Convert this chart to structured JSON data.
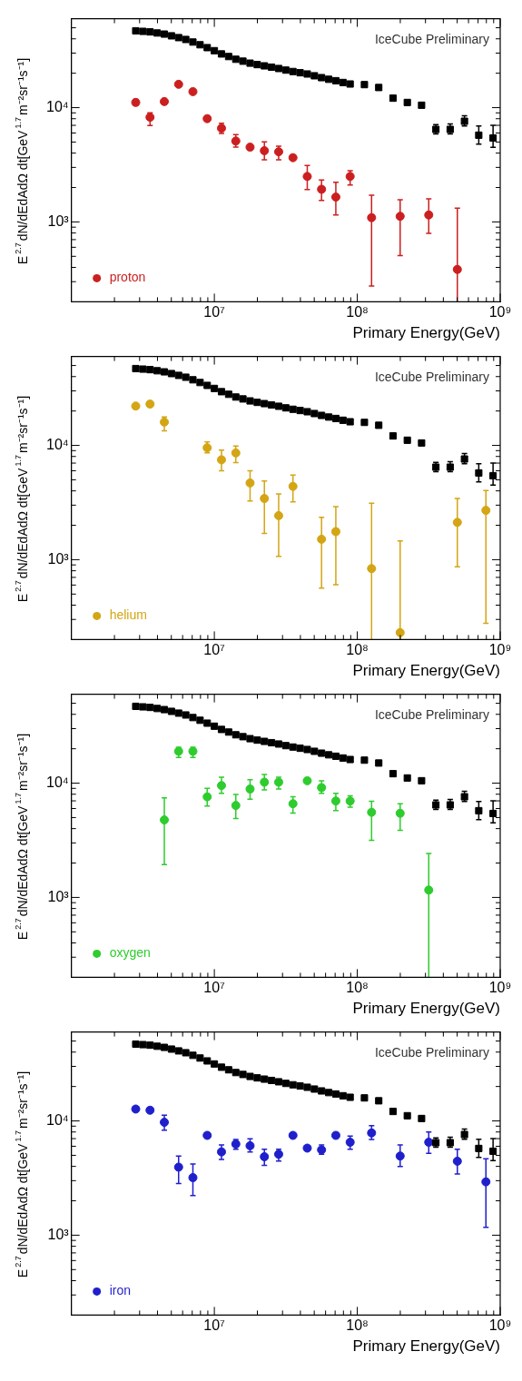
{
  "chart_data": [
    {
      "type": "scatter",
      "xlabel": "Primary Energy(GeV)",
      "ylabel": "E$^{2.7}$dN/dEdAdΩ dt[GeV$^{1.7}$m⁻²sr⁻¹s⁻¹]",
      "annotations": [
        "IceCube Preliminary"
      ],
      "log": "xy",
      "grid": false,
      "legend": "bottom left",
      "xlim": [
        1000000,
        1000000000
      ],
      "ylim": [
        200,
        60000
      ],
      "xticks": [
        {
          "value": 2000000,
          "label": null
        },
        {
          "value": 3000000,
          "label": null
        },
        {
          "value": 4000000,
          "label": null
        },
        {
          "value": 5000000,
          "label": null
        },
        {
          "value": 6000000,
          "label": null
        },
        {
          "value": 7000000,
          "label": null
        },
        {
          "value": 8000000,
          "label": null
        },
        {
          "value": 9000000,
          "label": null
        },
        {
          "value": 10000000,
          "label": "10⁷"
        },
        {
          "value": 20000000,
          "label": null
        },
        {
          "value": 30000000,
          "label": null
        },
        {
          "value": 40000000,
          "label": null
        },
        {
          "value": 50000000,
          "label": null
        },
        {
          "value": 60000000,
          "label": null
        },
        {
          "value": 70000000,
          "label": null
        },
        {
          "value": 80000000,
          "label": null
        },
        {
          "value": 90000000,
          "label": null
        },
        {
          "value": 100000000,
          "label": "10⁸"
        },
        {
          "value": 200000000,
          "label": null
        },
        {
          "value": 300000000,
          "label": null
        },
        {
          "value": 400000000,
          "label": null
        },
        {
          "value": 500000000,
          "label": null
        },
        {
          "value": 600000000,
          "label": null
        },
        {
          "value": 700000000,
          "label": null
        },
        {
          "value": 800000000,
          "label": null
        },
        {
          "value": 900000000,
          "label": null
        },
        {
          "value": 1000000000,
          "label": "10⁹"
        }
      ],
      "yticks": [
        {
          "value": 300,
          "label": null
        },
        {
          "value": 400,
          "label": null
        },
        {
          "value": 500,
          "label": null
        },
        {
          "value": 600,
          "label": null
        },
        {
          "value": 700,
          "label": null
        },
        {
          "value": 800,
          "label": null
        },
        {
          "value": 900,
          "label": null
        },
        {
          "value": 1000,
          "label": "10³"
        },
        {
          "value": 2000,
          "label": null
        },
        {
          "value": 3000,
          "label": null
        },
        {
          "value": 4000,
          "label": null
        },
        {
          "value": 5000,
          "label": null
        },
        {
          "value": 6000,
          "label": null
        },
        {
          "value": 7000,
          "label": null
        },
        {
          "value": 8000,
          "label": null
        },
        {
          "value": 9000,
          "label": null
        },
        {
          "value": 10000,
          "label": "10⁴"
        },
        {
          "value": 20000,
          "label": null
        },
        {
          "value": 30000,
          "label": null
        },
        {
          "value": 40000,
          "label": null
        },
        {
          "value": 50000,
          "label": null
        }
      ],
      "series": [
        {
          "color": "#000000",
          "marker": "square",
          "x": [
            2818000.0,
            3162000.0,
            3548000.0,
            3981000.0,
            4467000.0,
            5012000.0,
            5623000.0,
            6310000.0,
            7079000.0,
            7943000.0,
            8913000.0,
            10000000.0,
            11220000.0,
            12590000.0,
            14130000.0,
            15850000.0,
            17780000.0,
            19950000.0,
            22390000.0,
            25120000.0,
            28180000.0,
            31620000.0,
            35480000.0,
            39810000.0,
            44670000.0,
            50120000.0,
            56230000.0,
            63100000.0,
            70790000.0,
            79430000.0,
            89130000.0,
            112200000.0,
            141300000.0,
            177800000.0,
            223900000.0,
            281800000.0,
            354800000.0,
            446700000.0,
            562300000.0,
            707900000.0,
            891300000.0
          ],
          "values": [
            47000,
            46500,
            46000,
            45000,
            44000,
            42500,
            41000,
            39500,
            37500,
            35500,
            33500,
            31500,
            29500,
            28000,
            26500,
            25500,
            24500,
            23800,
            23200,
            22600,
            22000,
            21300,
            20700,
            20200,
            19700,
            19000,
            18300,
            17700,
            17200,
            16600,
            16100,
            15900,
            15000,
            12100,
            11100,
            10500,
            6450,
            6450,
            7600,
            5740,
            5430
          ],
          "errors": [
            null,
            null,
            null,
            null,
            null,
            null,
            null,
            null,
            null,
            null,
            null,
            null,
            null,
            null,
            null,
            null,
            null,
            null,
            null,
            null,
            null,
            null,
            null,
            null,
            null,
            null,
            null,
            null,
            null,
            null,
            null,
            null,
            null,
            null,
            null,
            null,
            [
              5900,
              7100
            ],
            [
              5900,
              7200
            ],
            [
              6900,
              8500
            ],
            [
              4800,
              6900
            ],
            [
              4500,
              7000
            ]
          ]
        },
        {
          "name": "proton",
          "color": "#cc1f1f",
          "marker": "circle",
          "x": [
            2818000.0,
            3548000.0,
            4467000.0,
            5623000.0,
            7079000.0,
            8913000.0,
            11220000.0,
            14130000.0,
            17780000.0,
            22390000.0,
            28180000.0,
            35480000.0,
            44670000.0,
            56230000.0,
            70790000.0,
            89130000.0,
            125900000.0,
            199500000.0,
            316200000.0,
            501200000.0
          ],
          "values": [
            11100,
            8240,
            11300,
            16000,
            13800,
            8010,
            6600,
            5100,
            4510,
            4200,
            4110,
            3650,
            2500,
            1930,
            1650,
            2500,
            1090,
            1120,
            1150,
            384
          ],
          "errors": [
            [
              10500,
              11800
            ],
            [
              6960,
              9020
            ],
            null,
            null,
            null,
            null,
            [
              5940,
              7310
            ],
            [
              4510,
              5820
            ],
            null,
            [
              3490,
              5010
            ],
            [
              3490,
              4600
            ],
            null,
            [
              1920,
              3120
            ],
            [
              1540,
              2330
            ],
            [
              1150,
              2220
            ],
            [
              2100,
              2810
            ],
            [
              275,
              1710
            ],
            [
              507,
              1560
            ],
            [
              795,
              1590
            ],
            [
              200,
              1320
            ]
          ]
        }
      ]
    },
    {
      "type": "scatter",
      "xlabel": "Primary Energy(GeV)",
      "ylabel": "E$^{2.7}$dN/dEdAdΩ dt[GeV$^{1.7}$m⁻²sr⁻¹s⁻¹]",
      "annotations": [
        "IceCube Preliminary"
      ],
      "log": "xy",
      "grid": false,
      "legend": "bottom left",
      "xlim": [
        1000000,
        1000000000
      ],
      "ylim": [
        200,
        60000
      ],
      "xticks": [
        {
          "value": 2000000,
          "label": null
        },
        {
          "value": 3000000,
          "label": null
        },
        {
          "value": 4000000,
          "label": null
        },
        {
          "value": 5000000,
          "label": null
        },
        {
          "value": 6000000,
          "label": null
        },
        {
          "value": 7000000,
          "label": null
        },
        {
          "value": 8000000,
          "label": null
        },
        {
          "value": 9000000,
          "label": null
        },
        {
          "value": 10000000,
          "label": "10⁷"
        },
        {
          "value": 20000000,
          "label": null
        },
        {
          "value": 30000000,
          "label": null
        },
        {
          "value": 40000000,
          "label": null
        },
        {
          "value": 50000000,
          "label": null
        },
        {
          "value": 60000000,
          "label": null
        },
        {
          "value": 70000000,
          "label": null
        },
        {
          "value": 80000000,
          "label": null
        },
        {
          "value": 90000000,
          "label": null
        },
        {
          "value": 100000000,
          "label": "10⁸"
        },
        {
          "value": 200000000,
          "label": null
        },
        {
          "value": 300000000,
          "label": null
        },
        {
          "value": 400000000,
          "label": null
        },
        {
          "value": 500000000,
          "label": null
        },
        {
          "value": 600000000,
          "label": null
        },
        {
          "value": 700000000,
          "label": null
        },
        {
          "value": 800000000,
          "label": null
        },
        {
          "value": 900000000,
          "label": null
        },
        {
          "value": 1000000000,
          "label": "10⁹"
        }
      ],
      "yticks": [
        {
          "value": 300,
          "label": null
        },
        {
          "value": 400,
          "label": null
        },
        {
          "value": 500,
          "label": null
        },
        {
          "value": 600,
          "label": null
        },
        {
          "value": 700,
          "label": null
        },
        {
          "value": 800,
          "label": null
        },
        {
          "value": 900,
          "label": null
        },
        {
          "value": 1000,
          "label": "10³"
        },
        {
          "value": 2000,
          "label": null
        },
        {
          "value": 3000,
          "label": null
        },
        {
          "value": 4000,
          "label": null
        },
        {
          "value": 5000,
          "label": null
        },
        {
          "value": 6000,
          "label": null
        },
        {
          "value": 7000,
          "label": null
        },
        {
          "value": 8000,
          "label": null
        },
        {
          "value": 9000,
          "label": null
        },
        {
          "value": 10000,
          "label": "10⁴"
        },
        {
          "value": 20000,
          "label": null
        },
        {
          "value": 30000,
          "label": null
        },
        {
          "value": 40000,
          "label": null
        },
        {
          "value": 50000,
          "label": null
        }
      ],
      "series": [
        {
          "color": "#000000",
          "marker": "square",
          "x": [
            2818000.0,
            3162000.0,
            3548000.0,
            3981000.0,
            4467000.0,
            5012000.0,
            5623000.0,
            6310000.0,
            7079000.0,
            7943000.0,
            8913000.0,
            10000000.0,
            11220000.0,
            12590000.0,
            14130000.0,
            15850000.0,
            17780000.0,
            19950000.0,
            22390000.0,
            25120000.0,
            28180000.0,
            31620000.0,
            35480000.0,
            39810000.0,
            44670000.0,
            50120000.0,
            56230000.0,
            63100000.0,
            70790000.0,
            79430000.0,
            89130000.0,
            112200000.0,
            141300000.0,
            177800000.0,
            223900000.0,
            281800000.0,
            354800000.0,
            446700000.0,
            562300000.0,
            707900000.0,
            891300000.0
          ],
          "values": [
            47000,
            46500,
            46000,
            45000,
            44000,
            42500,
            41000,
            39500,
            37500,
            35500,
            33500,
            31500,
            29500,
            28000,
            26500,
            25500,
            24500,
            23800,
            23200,
            22600,
            22000,
            21300,
            20700,
            20200,
            19700,
            19000,
            18300,
            17700,
            17200,
            16600,
            16100,
            15900,
            15000,
            12100,
            11100,
            10500,
            6450,
            6450,
            7600,
            5740,
            5430
          ],
          "errors": [
            null,
            null,
            null,
            null,
            null,
            null,
            null,
            null,
            null,
            null,
            null,
            null,
            null,
            null,
            null,
            null,
            null,
            null,
            null,
            null,
            null,
            null,
            null,
            null,
            null,
            null,
            null,
            null,
            null,
            null,
            null,
            null,
            null,
            null,
            null,
            null,
            [
              5900,
              7100
            ],
            [
              5900,
              7200
            ],
            [
              6900,
              8500
            ],
            [
              4800,
              6900
            ],
            [
              4500,
              7000
            ]
          ]
        },
        {
          "name": "helium",
          "color": "#d4a514",
          "marker": "circle",
          "x": [
            2818000.0,
            3548000.0,
            4467000.0,
            8913000.0,
            11220000.0,
            14130000.0,
            17780000.0,
            22390000.0,
            28180000.0,
            35480000.0,
            56230000.0,
            70790000.0,
            125900000.0,
            199500000.0,
            501200000.0,
            794300000.0
          ],
          "values": [
            22100,
            23000,
            16000,
            9530,
            7480,
            8590,
            4690,
            3430,
            2430,
            4380,
            1510,
            1760,
            836,
            230,
            2120,
            2700
          ],
          "errors": [
            null,
            null,
            [
              13400,
              17700
            ],
            [
              8600,
              10700
            ],
            [
              6000,
              9080
            ],
            [
              7080,
              9860
            ],
            [
              3270,
              6000
            ],
            [
              1700,
              4890
            ],
            [
              1070,
              3760
            ],
            [
              3210,
              5490
            ],
            [
              564,
              2350
            ],
            [
              604,
              2910
            ],
            [
              200,
              3120
            ],
            [
              200,
              1460
            ],
            [
              865,
              3430
            ],
            [
              277,
              4030
            ]
          ]
        }
      ]
    },
    {
      "type": "scatter",
      "xlabel": "Primary Energy(GeV)",
      "ylabel": "E$^{2.7}$dN/dEdAdΩ dt[GeV$^{1.7}$m⁻²sr⁻¹s⁻¹]",
      "annotations": [
        "IceCube Preliminary"
      ],
      "log": "xy",
      "grid": false,
      "legend": "bottom left",
      "xlim": [
        1000000,
        1000000000
      ],
      "ylim": [
        200,
        60000
      ],
      "xticks": [
        {
          "value": 2000000,
          "label": null
        },
        {
          "value": 3000000,
          "label": null
        },
        {
          "value": 4000000,
          "label": null
        },
        {
          "value": 5000000,
          "label": null
        },
        {
          "value": 6000000,
          "label": null
        },
        {
          "value": 7000000,
          "label": null
        },
        {
          "value": 8000000,
          "label": null
        },
        {
          "value": 9000000,
          "label": null
        },
        {
          "value": 10000000,
          "label": "10⁷"
        },
        {
          "value": 20000000,
          "label": null
        },
        {
          "value": 30000000,
          "label": null
        },
        {
          "value": 40000000,
          "label": null
        },
        {
          "value": 50000000,
          "label": null
        },
        {
          "value": 60000000,
          "label": null
        },
        {
          "value": 70000000,
          "label": null
        },
        {
          "value": 80000000,
          "label": null
        },
        {
          "value": 90000000,
          "label": null
        },
        {
          "value": 100000000,
          "label": "10⁸"
        },
        {
          "value": 200000000,
          "label": null
        },
        {
          "value": 300000000,
          "label": null
        },
        {
          "value": 400000000,
          "label": null
        },
        {
          "value": 500000000,
          "label": null
        },
        {
          "value": 600000000,
          "label": null
        },
        {
          "value": 700000000,
          "label": null
        },
        {
          "value": 800000000,
          "label": null
        },
        {
          "value": 900000000,
          "label": null
        },
        {
          "value": 1000000000,
          "label": "10⁹"
        }
      ],
      "yticks": [
        {
          "value": 300,
          "label": null
        },
        {
          "value": 400,
          "label": null
        },
        {
          "value": 500,
          "label": null
        },
        {
          "value": 600,
          "label": null
        },
        {
          "value": 700,
          "label": null
        },
        {
          "value": 800,
          "label": null
        },
        {
          "value": 900,
          "label": null
        },
        {
          "value": 1000,
          "label": "10³"
        },
        {
          "value": 2000,
          "label": null
        },
        {
          "value": 3000,
          "label": null
        },
        {
          "value": 4000,
          "label": null
        },
        {
          "value": 5000,
          "label": null
        },
        {
          "value": 6000,
          "label": null
        },
        {
          "value": 7000,
          "label": null
        },
        {
          "value": 8000,
          "label": null
        },
        {
          "value": 9000,
          "label": null
        },
        {
          "value": 10000,
          "label": "10⁴"
        },
        {
          "value": 20000,
          "label": null
        },
        {
          "value": 30000,
          "label": null
        },
        {
          "value": 40000,
          "label": null
        },
        {
          "value": 50000,
          "label": null
        }
      ],
      "series": [
        {
          "color": "#000000",
          "marker": "square",
          "x": [
            2818000.0,
            3162000.0,
            3548000.0,
            3981000.0,
            4467000.0,
            5012000.0,
            5623000.0,
            6310000.0,
            7079000.0,
            7943000.0,
            8913000.0,
            10000000.0,
            11220000.0,
            12590000.0,
            14130000.0,
            15850000.0,
            17780000.0,
            19950000.0,
            22390000.0,
            25120000.0,
            28180000.0,
            31620000.0,
            35480000.0,
            39810000.0,
            44670000.0,
            50120000.0,
            56230000.0,
            63100000.0,
            70790000.0,
            79430000.0,
            89130000.0,
            112200000.0,
            141300000.0,
            177800000.0,
            223900000.0,
            281800000.0,
            354800000.0,
            446700000.0,
            562300000.0,
            707900000.0,
            891300000.0
          ],
          "values": [
            47000,
            46500,
            46000,
            45000,
            44000,
            42500,
            41000,
            39500,
            37500,
            35500,
            33500,
            31500,
            29500,
            28000,
            26500,
            25500,
            24500,
            23800,
            23200,
            22600,
            22000,
            21300,
            20700,
            20200,
            19700,
            19000,
            18300,
            17700,
            17200,
            16600,
            16100,
            15900,
            15000,
            12100,
            11100,
            10500,
            6450,
            6450,
            7600,
            5740,
            5430
          ],
          "errors": [
            null,
            null,
            null,
            null,
            null,
            null,
            null,
            null,
            null,
            null,
            null,
            null,
            null,
            null,
            null,
            null,
            null,
            null,
            null,
            null,
            null,
            null,
            null,
            null,
            null,
            null,
            null,
            null,
            null,
            null,
            null,
            null,
            null,
            null,
            null,
            null,
            [
              5900,
              7100
            ],
            [
              5900,
              7200
            ],
            [
              6900,
              8500
            ],
            [
              4800,
              6900
            ],
            [
              4500,
              7000
            ]
          ]
        },
        {
          "name": "oxygen",
          "color": "#2ecc2e",
          "marker": "circle",
          "x": [
            4467000.0,
            5623000.0,
            7079000.0,
            8913000.0,
            11220000.0,
            14130000.0,
            17780000.0,
            22390000.0,
            28180000.0,
            35480000.0,
            44670000.0,
            56230000.0,
            70790000.0,
            89130000.0,
            125900000.0,
            199500000.0,
            316200000.0
          ],
          "values": [
            4770,
            19000,
            19000,
            7590,
            9530,
            6380,
            8890,
            10200,
            10200,
            6610,
            10500,
            9140,
            6980,
            6980,
            5560,
            5450,
            1160
          ],
          "errors": [
            [
              1940,
              7430
            ],
            [
              16800,
              20650
            ],
            [
              16800,
              20650
            ],
            [
              6300,
              9010
            ],
            [
              8130,
              11250
            ],
            [
              4910,
              7960
            ],
            [
              7230,
              10700
            ],
            [
              8710,
              11900
            ],
            [
              8890,
              11250
            ],
            [
              5480,
              7590
            ],
            null,
            [
              8130,
              10500
            ],
            [
              5750,
              8130
            ],
            [
              6170,
              7740
            ],
            [
              3160,
              6930
            ],
            [
              3860,
              6610
            ],
            [
              200,
              2420
            ]
          ]
        }
      ]
    },
    {
      "type": "scatter",
      "xlabel": "Primary Energy(GeV)",
      "ylabel": "E$^{2.7}$dN/dEdAdΩ dt[GeV$^{1.7}$m⁻²sr⁻¹s⁻¹]",
      "annotations": [
        "IceCube Preliminary"
      ],
      "log": "xy",
      "grid": false,
      "legend": "bottom left",
      "xlim": [
        1000000,
        1000000000
      ],
      "ylim": [
        200,
        60000
      ],
      "xticks": [
        {
          "value": 2000000,
          "label": null
        },
        {
          "value": 3000000,
          "label": null
        },
        {
          "value": 4000000,
          "label": null
        },
        {
          "value": 5000000,
          "label": null
        },
        {
          "value": 6000000,
          "label": null
        },
        {
          "value": 7000000,
          "label": null
        },
        {
          "value": 8000000,
          "label": null
        },
        {
          "value": 9000000,
          "label": null
        },
        {
          "value": 10000000,
          "label": "10⁷"
        },
        {
          "value": 20000000,
          "label": null
        },
        {
          "value": 30000000,
          "label": null
        },
        {
          "value": 40000000,
          "label": null
        },
        {
          "value": 50000000,
          "label": null
        },
        {
          "value": 60000000,
          "label": null
        },
        {
          "value": 70000000,
          "label": null
        },
        {
          "value": 80000000,
          "label": null
        },
        {
          "value": 90000000,
          "label": null
        },
        {
          "value": 100000000,
          "label": "10⁸"
        },
        {
          "value": 200000000,
          "label": null
        },
        {
          "value": 300000000,
          "label": null
        },
        {
          "value": 400000000,
          "label": null
        },
        {
          "value": 500000000,
          "label": null
        },
        {
          "value": 600000000,
          "label": null
        },
        {
          "value": 700000000,
          "label": null
        },
        {
          "value": 800000000,
          "label": null
        },
        {
          "value": 900000000,
          "label": null
        },
        {
          "value": 1000000000,
          "label": "10⁹"
        }
      ],
      "yticks": [
        {
          "value": 300,
          "label": null
        },
        {
          "value": 400,
          "label": null
        },
        {
          "value": 500,
          "label": null
        },
        {
          "value": 600,
          "label": null
        },
        {
          "value": 700,
          "label": null
        },
        {
          "value": 800,
          "label": null
        },
        {
          "value": 900,
          "label": null
        },
        {
          "value": 1000,
          "label": "10³"
        },
        {
          "value": 2000,
          "label": null
        },
        {
          "value": 3000,
          "label": null
        },
        {
          "value": 4000,
          "label": null
        },
        {
          "value": 5000,
          "label": null
        },
        {
          "value": 6000,
          "label": null
        },
        {
          "value": 7000,
          "label": null
        },
        {
          "value": 8000,
          "label": null
        },
        {
          "value": 9000,
          "label": null
        },
        {
          "value": 10000,
          "label": "10⁴"
        },
        {
          "value": 20000,
          "label": null
        },
        {
          "value": 30000,
          "label": null
        },
        {
          "value": 40000,
          "label": null
        },
        {
          "value": 50000,
          "label": null
        }
      ],
      "series": [
        {
          "color": "#000000",
          "marker": "square",
          "x": [
            2818000.0,
            3162000.0,
            3548000.0,
            3981000.0,
            4467000.0,
            5012000.0,
            5623000.0,
            6310000.0,
            7079000.0,
            7943000.0,
            8913000.0,
            10000000.0,
            11220000.0,
            12590000.0,
            14130000.0,
            15850000.0,
            17780000.0,
            19950000.0,
            22390000.0,
            25120000.0,
            28180000.0,
            31620000.0,
            35480000.0,
            39810000.0,
            44670000.0,
            50120000.0,
            56230000.0,
            63100000.0,
            70790000.0,
            79430000.0,
            89130000.0,
            112200000.0,
            141300000.0,
            177800000.0,
            223900000.0,
            281800000.0,
            354800000.0,
            446700000.0,
            562300000.0,
            707900000.0,
            891300000.0
          ],
          "values": [
            47000,
            46500,
            46000,
            45000,
            44000,
            42500,
            41000,
            39500,
            37500,
            35500,
            33500,
            31500,
            29500,
            28000,
            26500,
            25500,
            24500,
            23800,
            23200,
            22600,
            22000,
            21300,
            20700,
            20200,
            19700,
            19000,
            18300,
            17700,
            17200,
            16600,
            16100,
            15900,
            15000,
            12100,
            11100,
            10500,
            6450,
            6450,
            7600,
            5740,
            5430
          ],
          "errors": [
            null,
            null,
            null,
            null,
            null,
            null,
            null,
            null,
            null,
            null,
            null,
            null,
            null,
            null,
            null,
            null,
            null,
            null,
            null,
            null,
            null,
            null,
            null,
            null,
            null,
            null,
            null,
            null,
            null,
            null,
            null,
            null,
            null,
            null,
            null,
            null,
            [
              5900,
              7100
            ],
            [
              5900,
              7200
            ],
            [
              6900,
              8500
            ],
            [
              4800,
              6900
            ],
            [
              4500,
              7000
            ]
          ]
        },
        {
          "name": "iron",
          "color": "#1f1fcc",
          "marker": "circle",
          "x": [
            2818000.0,
            3548000.0,
            4467000.0,
            5623000.0,
            7079000.0,
            8913000.0,
            11220000.0,
            14130000.0,
            17780000.0,
            22390000.0,
            28180000.0,
            35480000.0,
            44670000.0,
            56230000.0,
            70790000.0,
            89130000.0,
            125900000.0,
            199500000.0,
            316200000.0,
            501200000.0,
            794300000.0
          ],
          "values": [
            12700,
            12400,
            9730,
            3940,
            3190,
            7470,
            5360,
            6280,
            6060,
            4860,
            5110,
            7470,
            5780,
            5580,
            7470,
            6510,
            7850,
            4930,
            6510,
            4440,
            2930
          ],
          "errors": [
            null,
            null,
            [
              8300,
              11200
            ],
            [
              2830,
              4930
            ],
            [
              2220,
              4200
            ],
            null,
            [
              4600,
              6150
            ],
            [
              5660,
              6870
            ],
            [
              5360,
              6960
            ],
            [
              4080,
              5660
            ],
            [
              4450,
              5660
            ],
            null,
            null,
            [
              5110,
              6150
            ],
            null,
            [
              5660,
              7360
            ],
            [
              6870,
              9080
            ],
            [
              4000,
              6150
            ],
            [
              5210,
              8010
            ],
            [
              3440,
              5660
            ],
            [
              1170,
              4670
            ]
          ]
        }
      ]
    }
  ]
}
